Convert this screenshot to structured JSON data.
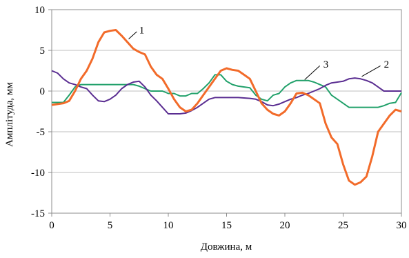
{
  "chart_data": {
    "type": "line",
    "title": "",
    "xlabel": "Довжина, м",
    "ylabel": "Амплітуда, мм",
    "xlim": [
      0,
      30
    ],
    "ylim": [
      -15,
      10
    ],
    "xticks": [
      0,
      5,
      10,
      15,
      20,
      25,
      30
    ],
    "yticks": [
      -15,
      -10,
      -5,
      0,
      5,
      10
    ],
    "grid": "horizontal",
    "legend": "none",
    "series": [
      {
        "label": "1",
        "color": "#f26b2a",
        "points": [
          [
            0,
            -1.7
          ],
          [
            1,
            -1.5
          ],
          [
            1.5,
            -1.2
          ],
          [
            2,
            0
          ],
          [
            2.5,
            1.5
          ],
          [
            3,
            2.5
          ],
          [
            3.5,
            4
          ],
          [
            4,
            6
          ],
          [
            4.5,
            7.2
          ],
          [
            5,
            7.4
          ],
          [
            5.5,
            7.5
          ],
          [
            6,
            6.8
          ],
          [
            6.5,
            6
          ],
          [
            7,
            5.2
          ],
          [
            7.5,
            4.8
          ],
          [
            8,
            4.5
          ],
          [
            8.5,
            3
          ],
          [
            9,
            2
          ],
          [
            9.5,
            1.5
          ],
          [
            10,
            0.3
          ],
          [
            10.5,
            -1
          ],
          [
            11,
            -2
          ],
          [
            11.5,
            -2.5
          ],
          [
            12,
            -2.3
          ],
          [
            12.5,
            -1.5
          ],
          [
            13,
            -0.5
          ],
          [
            13.5,
            0.5
          ],
          [
            14,
            1.5
          ],
          [
            14.5,
            2.5
          ],
          [
            15,
            2.8
          ],
          [
            15.5,
            2.6
          ],
          [
            16,
            2.5
          ],
          [
            16.5,
            2
          ],
          [
            17,
            1.5
          ],
          [
            17.5,
            0
          ],
          [
            18,
            -1.5
          ],
          [
            18.5,
            -2.3
          ],
          [
            19,
            -2.8
          ],
          [
            19.5,
            -3
          ],
          [
            20,
            -2.5
          ],
          [
            20.5,
            -1.5
          ],
          [
            21,
            -0.3
          ],
          [
            21.5,
            -0.2
          ],
          [
            22,
            -0.5
          ],
          [
            22.5,
            -1
          ],
          [
            23,
            -1.5
          ],
          [
            23.5,
            -4
          ],
          [
            24,
            -5.7
          ],
          [
            24.5,
            -6.5
          ],
          [
            25,
            -9
          ],
          [
            25.5,
            -11
          ],
          [
            26,
            -11.5
          ],
          [
            26.5,
            -11.2
          ],
          [
            27,
            -10.5
          ],
          [
            27.5,
            -8
          ],
          [
            28,
            -5
          ],
          [
            28.5,
            -4
          ],
          [
            29,
            -3
          ],
          [
            29.5,
            -2.3
          ],
          [
            30,
            -2.5
          ]
        ]
      },
      {
        "label": "2",
        "color": "#5a2d91",
        "points": [
          [
            0,
            2.5
          ],
          [
            0.5,
            2.2
          ],
          [
            1,
            1.5
          ],
          [
            1.5,
            1
          ],
          [
            2,
            0.8
          ],
          [
            2.5,
            0.5
          ],
          [
            3,
            0.3
          ],
          [
            3.5,
            -0.5
          ],
          [
            4,
            -1.2
          ],
          [
            4.5,
            -1.3
          ],
          [
            5,
            -1
          ],
          [
            5.5,
            -0.5
          ],
          [
            6,
            0.3
          ],
          [
            6.5,
            0.8
          ],
          [
            7,
            1.1
          ],
          [
            7.5,
            1.2
          ],
          [
            8,
            0.5
          ],
          [
            8.5,
            -0.5
          ],
          [
            9,
            -1.2
          ],
          [
            9.5,
            -2
          ],
          [
            10,
            -2.8
          ],
          [
            11,
            -2.8
          ],
          [
            11.5,
            -2.7
          ],
          [
            12,
            -2.4
          ],
          [
            12.5,
            -2
          ],
          [
            13,
            -1.5
          ],
          [
            13.5,
            -1
          ],
          [
            14,
            -0.8
          ],
          [
            15,
            -0.8
          ],
          [
            16,
            -0.8
          ],
          [
            17,
            -0.9
          ],
          [
            17.5,
            -1
          ],
          [
            18,
            -1.3
          ],
          [
            18.5,
            -1.7
          ],
          [
            19,
            -1.8
          ],
          [
            19.5,
            -1.6
          ],
          [
            20,
            -1.3
          ],
          [
            20.5,
            -1
          ],
          [
            21,
            -0.8
          ],
          [
            21.5,
            -0.5
          ],
          [
            22,
            -0.3
          ],
          [
            22.5,
            0
          ],
          [
            23,
            0.3
          ],
          [
            23.5,
            0.7
          ],
          [
            24,
            1
          ],
          [
            24.5,
            1.1
          ],
          [
            25,
            1.2
          ],
          [
            25.5,
            1.5
          ],
          [
            26,
            1.6
          ],
          [
            26.5,
            1.5
          ],
          [
            27,
            1.3
          ],
          [
            27.5,
            1
          ],
          [
            28,
            0.5
          ],
          [
            28.5,
            0
          ],
          [
            29,
            0
          ],
          [
            30,
            0
          ]
        ]
      },
      {
        "label": "3",
        "color": "#22a16b",
        "points": [
          [
            0,
            -1.4
          ],
          [
            1,
            -1.4
          ],
          [
            1.5,
            -0.5
          ],
          [
            2,
            0.5
          ],
          [
            2.5,
            0.8
          ],
          [
            3,
            0.8
          ],
          [
            4,
            0.8
          ],
          [
            5,
            0.8
          ],
          [
            6,
            0.8
          ],
          [
            7,
            0.8
          ],
          [
            7.5,
            0.6
          ],
          [
            8,
            0.3
          ],
          [
            8.5,
            0
          ],
          [
            9,
            0
          ],
          [
            9.5,
            0
          ],
          [
            10,
            -0.3
          ],
          [
            10.5,
            -0.3
          ],
          [
            11,
            -0.6
          ],
          [
            11.5,
            -0.6
          ],
          [
            12,
            -0.3
          ],
          [
            12.5,
            -0.3
          ],
          [
            13,
            0.3
          ],
          [
            13.5,
            1
          ],
          [
            14,
            2
          ],
          [
            14.5,
            2
          ],
          [
            15,
            1.2
          ],
          [
            15.5,
            0.8
          ],
          [
            16,
            0.6
          ],
          [
            17,
            0.4
          ],
          [
            17.5,
            -0.5
          ],
          [
            18,
            -1
          ],
          [
            18.5,
            -1.2
          ],
          [
            19,
            -0.5
          ],
          [
            19.5,
            -0.3
          ],
          [
            20,
            0.5
          ],
          [
            20.5,
            1
          ],
          [
            21,
            1.3
          ],
          [
            22,
            1.3
          ],
          [
            22.5,
            1.1
          ],
          [
            23,
            0.8
          ],
          [
            23.5,
            0.5
          ],
          [
            24,
            -0.5
          ],
          [
            24.5,
            -1
          ],
          [
            25,
            -1.5
          ],
          [
            25.5,
            -2
          ],
          [
            26,
            -2
          ],
          [
            27,
            -2
          ],
          [
            28,
            -2
          ],
          [
            28.5,
            -1.8
          ],
          [
            29,
            -1.5
          ],
          [
            29.5,
            -1.4
          ],
          [
            30,
            -0.2
          ]
        ]
      }
    ],
    "annotations": [
      {
        "text": "1",
        "x": 7.5,
        "y": 7.5
      },
      {
        "text": "2",
        "x": 28.5,
        "y": 3.3
      },
      {
        "text": "3",
        "x": 23.3,
        "y": 3.3
      }
    ]
  }
}
